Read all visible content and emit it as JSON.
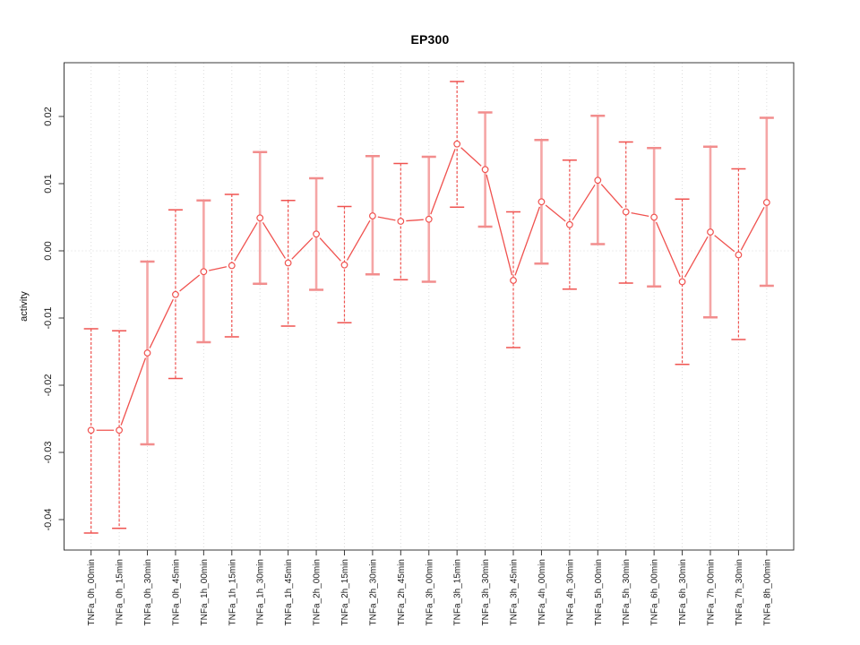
{
  "chart_data": {
    "type": "scatter",
    "title": "EP300",
    "xlabel": "",
    "ylabel": "activity",
    "ylim": [
      -0.0445,
      0.028
    ],
    "yticks": [
      0.02,
      0.01,
      0.0,
      -0.01,
      -0.02,
      -0.03,
      -0.04
    ],
    "grid": "dotted vertical gridline at each category; dotted horizontal line at y=0",
    "legend": "none",
    "categories": [
      "TNFa_0h_00min",
      "TNFa_0h_15min",
      "TNFa_0h_30min",
      "TNFa_0h_45min",
      "TNFa_1h_00min",
      "TNFa_1h_15min",
      "TNFa_1h_30min",
      "TNFa_1h_45min",
      "TNFa_2h_00min",
      "TNFa_2h_15min",
      "TNFa_2h_30min",
      "TNFa_2h_45min",
      "TNFa_3h_00min",
      "TNFa_3h_15min",
      "TNFa_3h_30min",
      "TNFa_3h_45min",
      "TNFa_4h_00min",
      "TNFa_4h_30min",
      "TNFa_5h_00min",
      "TNFa_5h_30min",
      "TNFa_6h_00min",
      "TNFa_6h_30min",
      "TNFa_7h_00min",
      "TNFa_7h_30min",
      "TNFa_8h_00min"
    ],
    "series": [
      {
        "name": "activity",
        "values": [
          -0.0267,
          -0.0267,
          -0.0152,
          -0.0065,
          -0.0031,
          -0.0022,
          0.0049,
          -0.0018,
          0.0025,
          -0.0021,
          0.0052,
          0.0044,
          0.0047,
          0.0159,
          0.0121,
          -0.0044,
          0.0073,
          0.0039,
          0.0105,
          0.0058,
          0.005,
          -0.0046,
          0.0028,
          -0.0006,
          0.0072
        ],
        "lower": [
          -0.042,
          -0.0413,
          -0.0288,
          -0.019,
          -0.0136,
          -0.0128,
          -0.0049,
          -0.0112,
          -0.0058,
          -0.0107,
          -0.0035,
          -0.0043,
          -0.0046,
          0.0065,
          0.0036,
          -0.0144,
          -0.0019,
          -0.0057,
          0.001,
          -0.0048,
          -0.0053,
          -0.0169,
          -0.0099,
          -0.0132,
          -0.0052
        ],
        "upper": [
          -0.0116,
          -0.0119,
          -0.0016,
          0.0061,
          0.0075,
          0.0084,
          0.0147,
          0.0075,
          0.0108,
          0.0066,
          0.0141,
          0.013,
          0.014,
          0.0252,
          0.0206,
          0.0058,
          0.0165,
          0.0135,
          0.0201,
          0.0162,
          0.0153,
          0.0077,
          0.0155,
          0.0122,
          0.0198
        ],
        "bar_styles": [
          "dashed",
          "dashed",
          "solid",
          "dashed",
          "solid",
          "dashed",
          "solid",
          "dashed",
          "solid",
          "dashed",
          "solid",
          "dashed",
          "solid",
          "dashed",
          "solid",
          "dashed",
          "solid",
          "dashed",
          "solid",
          "dashed",
          "solid",
          "dashed",
          "solid",
          "dashed",
          "solid"
        ]
      }
    ],
    "colors": {
      "point_line": "#f0524f",
      "bar_dashed": "#ef5350",
      "bar_solid": "#f5a6a6",
      "bar_solid_cap": "#f28d8d",
      "grid": "#dcdcdc",
      "frame": "#3a3a3a",
      "text": "#1a1a1a"
    }
  }
}
